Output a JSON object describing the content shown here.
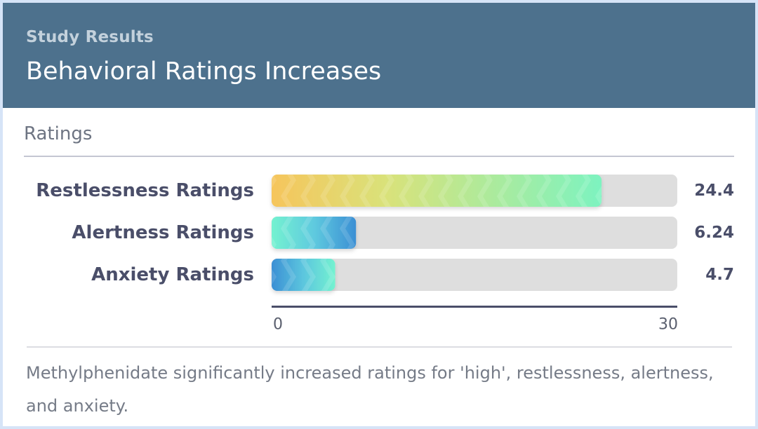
{
  "header": {
    "eyebrow": "Study Results",
    "title": "Behavioral Ratings Increases"
  },
  "section": {
    "label": "Ratings"
  },
  "chart_data": {
    "type": "bar",
    "orientation": "horizontal",
    "categories": [
      "Restlessness Ratings",
      "Alertness Ratings",
      "Anxiety Ratings"
    ],
    "values": [
      24.4,
      6.24,
      4.7
    ],
    "value_labels": [
      "24.4",
      "6.24",
      "4.7"
    ],
    "xlim": [
      0,
      30
    ],
    "tick_labels": [
      "0",
      "30"
    ],
    "grid": false
  },
  "colors": {
    "header_bg": "#4d718d",
    "track": "#dedede",
    "gradient_yellow": "#f6c55c",
    "gradient_green": "#7df3c0",
    "gradient_blue": "#3b8fd4",
    "gradient_teal": "#74f2d0",
    "label_text": "#4a4e69"
  },
  "footnote": "Methylphenidate significantly increased ratings for 'high', restlessness, alertness, and anxiety."
}
